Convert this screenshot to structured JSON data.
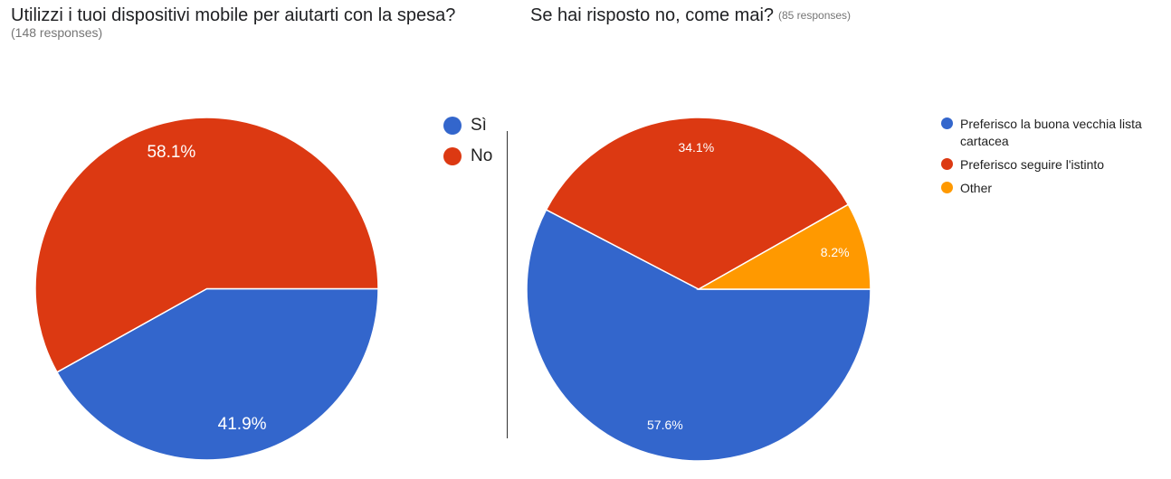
{
  "colors": {
    "blue": "#3366cc",
    "red": "#dc3912",
    "orange": "#ff9900"
  },
  "chart_data": [
    {
      "type": "pie",
      "title": "Utilizzi i tuoi dispositivi mobile per aiutarti con la spesa?",
      "responses": "(148 responses)",
      "slices": [
        {
          "label": "Sì",
          "value": 41.9,
          "display": "41.9%",
          "color": "#3366cc"
        },
        {
          "label": "No",
          "value": 58.1,
          "display": "58.1%",
          "color": "#dc3912"
        }
      ],
      "legend_position": "right"
    },
    {
      "type": "pie",
      "title": "Se hai risposto no, come mai?",
      "responses": "(85 responses)",
      "slices": [
        {
          "label": "Preferisco la buona vecchia lista cartacea",
          "value": 57.6,
          "display": "57.6%",
          "color": "#3366cc"
        },
        {
          "label": "Preferisco seguire l'istinto",
          "value": 34.1,
          "display": "34.1%",
          "color": "#dc3912"
        },
        {
          "label": "Other",
          "value": 8.2,
          "display": "8.2%",
          "color": "#ff9900"
        }
      ],
      "legend_position": "right"
    }
  ]
}
